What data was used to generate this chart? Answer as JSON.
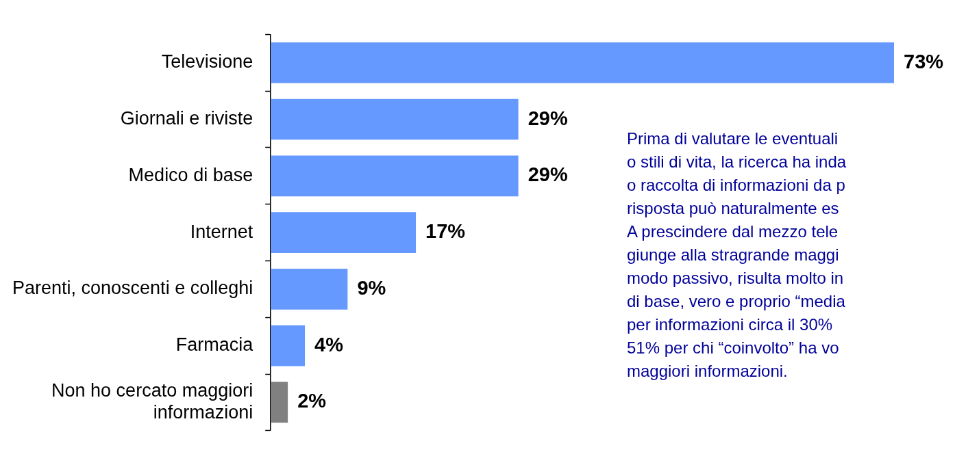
{
  "chart_data": {
    "type": "bar",
    "orientation": "horizontal",
    "categories": [
      "Televisione",
      "Giornali e riviste",
      "Medico di base",
      "Internet",
      "Parenti, conoscenti e colleghi",
      "Farmacia",
      "Non ho cercato maggiori informazioni"
    ],
    "values": [
      73,
      29,
      29,
      17,
      9,
      4,
      2
    ],
    "colors": [
      "#6699ff",
      "#6699ff",
      "#6699ff",
      "#6699ff",
      "#6699ff",
      "#6699ff",
      "#808080"
    ],
    "data_labels": true,
    "value_labels": [
      "73%",
      "29%",
      "29%",
      "17%",
      "9%",
      "4%",
      "2%"
    ],
    "legend": false,
    "grid": false,
    "annotations": [
      "Prima di valutare le eventuali",
      "o stili di vita, la ricerca ha inda",
      "o raccolta di informazioni da p",
      "risposta può naturalmente es",
      "A prescindere dal mezzo tele",
      "giunge alla stragrande maggi",
      "modo passivo, risulta molto in",
      "di base, vero e proprio “media",
      "per informazioni circa il 30%",
      "51% per chi “coinvolto” ha vo",
      "maggiori informazioni."
    ]
  }
}
